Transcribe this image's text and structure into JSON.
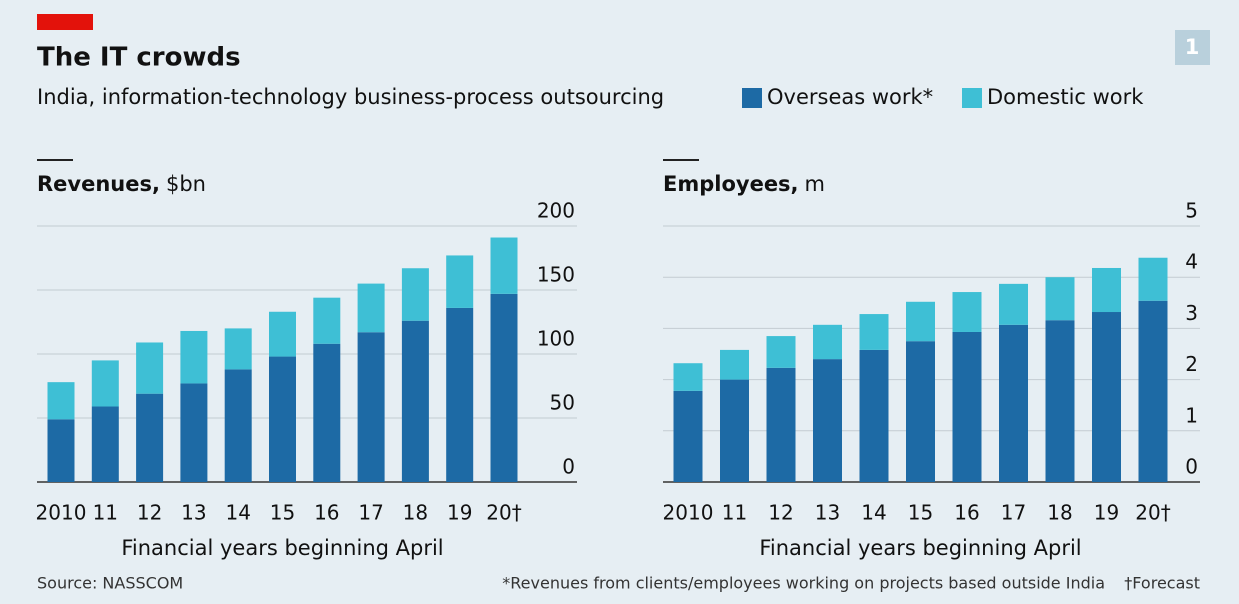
{
  "title": "The IT crowds",
  "subtitle": "India, information-technology business-process outsourcing",
  "badge": "1",
  "source": "Source: NASSCOM",
  "footnote": "*Revenues from clients/employees working on projects based outside India",
  "forecast_note": "†Forecast",
  "chart_data": [
    {
      "type": "stacked_bar",
      "title": "Revenues,",
      "unit": "$bn",
      "xlabel": "Financial years beginning April",
      "categories": [
        "2010",
        "11",
        "12",
        "13",
        "14",
        "15",
        "16",
        "17",
        "18",
        "19",
        "20†"
      ],
      "series": [
        {
          "name": "Overseas work*",
          "color": "#1d6aa5",
          "values": [
            49,
            59,
            69,
            77,
            88,
            98,
            108,
            117,
            126,
            136,
            147
          ]
        },
        {
          "name": "Domestic work",
          "color": "#3ebfd5",
          "values": [
            29,
            36,
            40,
            41,
            32,
            35,
            36,
            38,
            41,
            41,
            44
          ]
        }
      ],
      "ylim": [
        0,
        200
      ],
      "yticks": [
        0,
        50,
        100,
        150,
        200
      ],
      "grid": true
    },
    {
      "type": "stacked_bar",
      "title": "Employees,",
      "unit": "m",
      "xlabel": "Financial years beginning April",
      "categories": [
        "2010",
        "11",
        "12",
        "13",
        "14",
        "15",
        "16",
        "17",
        "18",
        "19",
        "20†"
      ],
      "series": [
        {
          "name": "Overseas work*",
          "color": "#1d6aa5",
          "values": [
            1.78,
            2.0,
            2.23,
            2.4,
            2.58,
            2.75,
            2.93,
            3.07,
            3.16,
            3.32,
            3.54
          ]
        },
        {
          "name": "Domestic work",
          "color": "#3ebfd5",
          "values": [
            0.54,
            0.58,
            0.62,
            0.67,
            0.7,
            0.77,
            0.78,
            0.8,
            0.84,
            0.86,
            0.84
          ]
        }
      ],
      "ylim": [
        0,
        5
      ],
      "yticks": [
        0,
        1,
        2,
        3,
        4,
        5
      ],
      "grid": true
    }
  ]
}
